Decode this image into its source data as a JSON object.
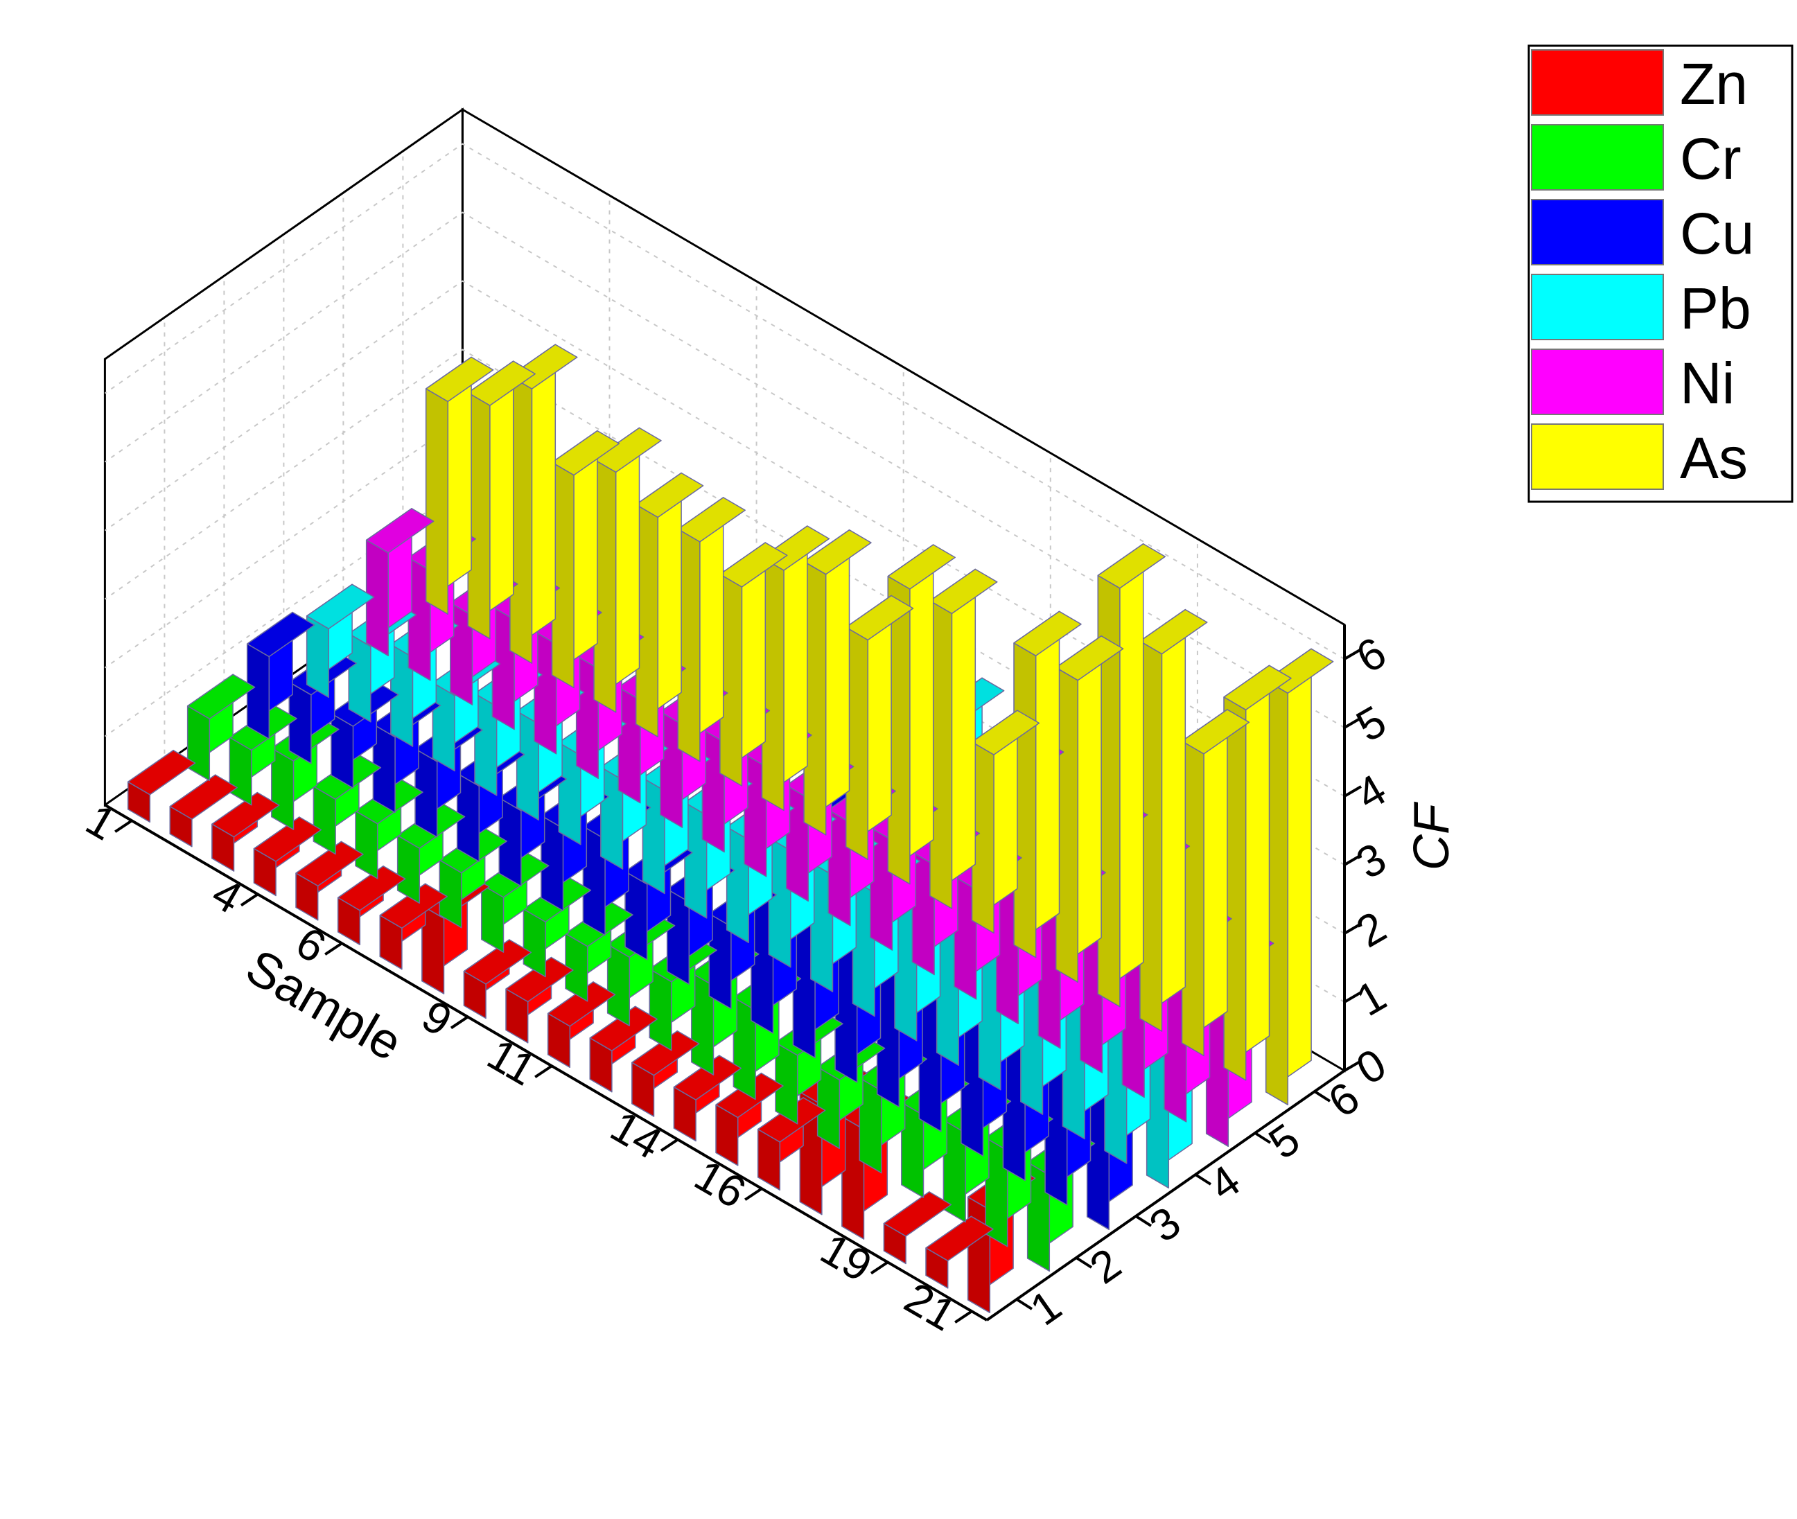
{
  "chart_data": {
    "type": "bar3d",
    "title": "",
    "xlabel": "Sample",
    "zlabel": "CF",
    "samples": [
      1,
      2,
      3,
      4,
      5,
      6,
      7,
      8,
      9,
      10,
      11,
      12,
      13,
      14,
      15,
      16,
      17,
      18,
      19,
      20,
      21
    ],
    "sample_tick_labels": [
      "1",
      "4",
      "6",
      "9",
      "11",
      "14",
      "16",
      "19",
      "21"
    ],
    "series_tick_labels": [
      "1",
      "2",
      "3",
      "4",
      "5",
      "6"
    ],
    "cf_tick_labels": [
      "0",
      "1",
      "2",
      "3",
      "4",
      "5",
      "6"
    ],
    "zlim": [
      0,
      6.5
    ],
    "grid": true,
    "legend_position": "top-right",
    "series": [
      {
        "name": "Zn",
        "color": "#ff0000",
        "values": [
          0.4,
          0.4,
          0.5,
          0.5,
          0.5,
          0.5,
          0.6,
          1.1,
          0.5,
          0.6,
          0.6,
          0.6,
          0.6,
          0.6,
          0.7,
          0.7,
          1.6,
          1.6,
          0.4,
          0.4,
          1.5
        ]
      },
      {
        "name": "Cr",
        "color": "#00ff00",
        "values": [
          0.9,
          0.8,
          1.0,
          0.8,
          0.8,
          0.8,
          0.8,
          0.8,
          0.8,
          0.8,
          1.0,
          1.0,
          1.3,
          1.3,
          1.0,
          1.0,
          1.2,
          1.2,
          1.3,
          1.4,
          1.4
        ]
      },
      {
        "name": "Cu",
        "color": "#0000ff",
        "values": [
          1.2,
          1.0,
          0.9,
          1.1,
          1.1,
          1.1,
          1.1,
          1.2,
          1.4,
          1.1,
          1.2,
          1.2,
          3.0,
          3.3,
          2.4,
          2.0,
          2.1,
          2.0,
          2.4,
          2.6,
          2.6
        ]
      },
      {
        "name": "Pb",
        "color": "#00ffff",
        "values": [
          1.0,
          1.1,
          1.3,
          1.1,
          1.3,
          1.4,
          1.3,
          1.3,
          1.5,
          1.5,
          1.5,
          1.7,
          1.7,
          1.8,
          2.1,
          5.0,
          4.8,
          2.4,
          2.3,
          2.2,
          2.2
        ]
      },
      {
        "name": "Ni",
        "color": "#ff00ff",
        "values": [
          1.5,
          1.6,
          1.3,
          1.6,
          1.6,
          1.6,
          1.5,
          1.5,
          1.6,
          1.6,
          1.5,
          1.5,
          1.6,
          1.6,
          1.6,
          3.5,
          2.1,
          3.3,
          3.2,
          2.5,
          2.5
        ]
      },
      {
        "name": "As",
        "color": "#ffff00",
        "values": [
          3.1,
          3.4,
          4.0,
          3.1,
          3.5,
          3.2,
          3.2,
          2.9,
          3.5,
          3.8,
          3.2,
          4.3,
          4.3,
          2.6,
          4.4,
          4.4,
          6.1,
          5.5,
          4.4,
          5.4,
          6.0
        ]
      }
    ]
  },
  "legend": {
    "items": [
      {
        "label": "Zn",
        "color": "#ff0000"
      },
      {
        "label": "Cr",
        "color": "#00ff00"
      },
      {
        "label": "Cu",
        "color": "#0000ff"
      },
      {
        "label": "Pb",
        "color": "#00ffff"
      },
      {
        "label": "Ni",
        "color": "#ff00ff"
      },
      {
        "label": "As",
        "color": "#ffff00"
      }
    ]
  }
}
